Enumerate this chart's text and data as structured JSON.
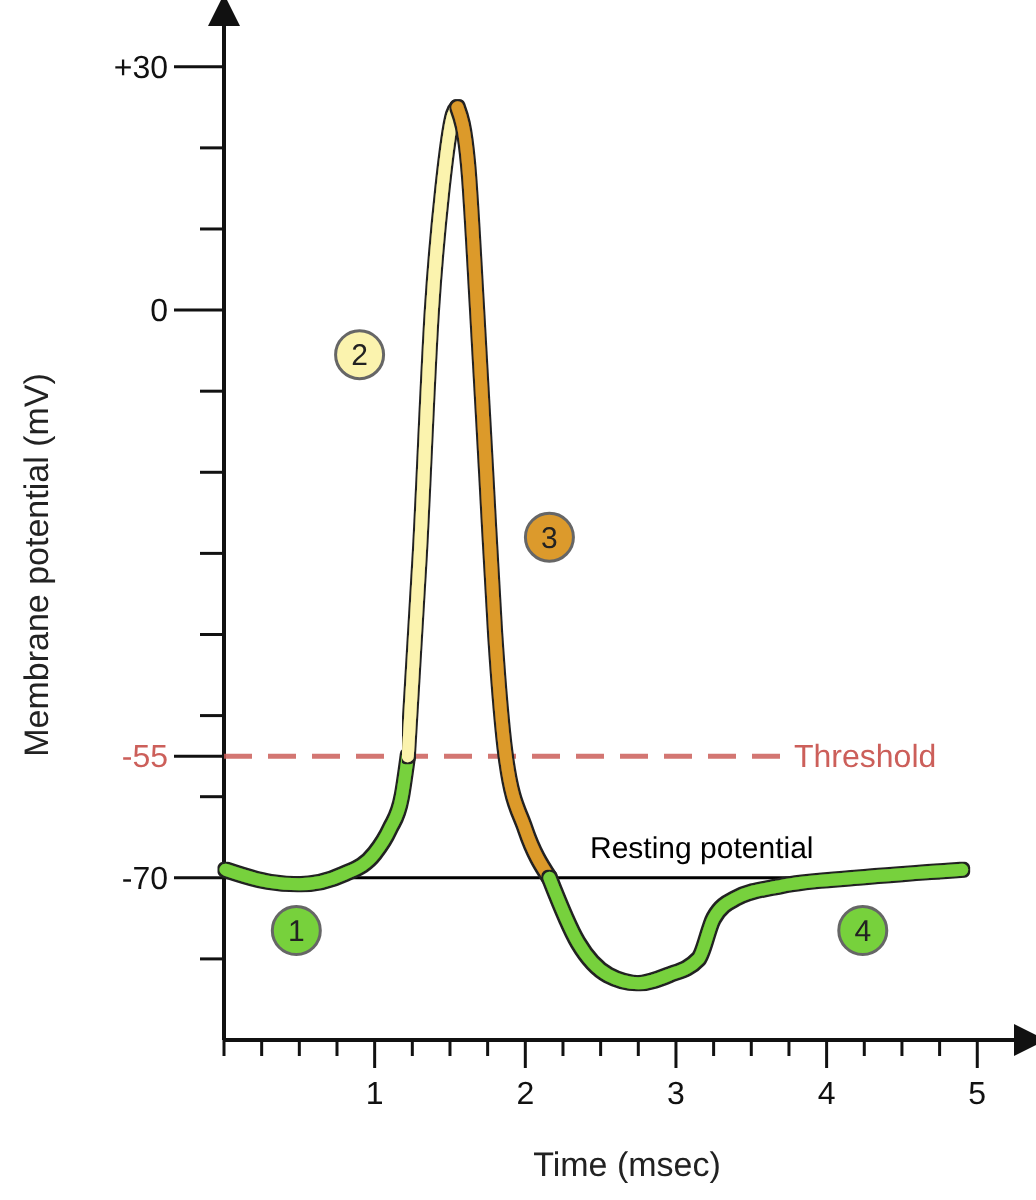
{
  "chart_data": {
    "type": "line",
    "xlabel": "Time (msec)",
    "ylabel": "Membrane potential (mV)",
    "xlim": [
      0,
      5.35
    ],
    "ylim": [
      -90,
      37
    ],
    "xticks": [
      {
        "value": 0,
        "label": null
      },
      {
        "value": 0.25,
        "label": null
      },
      {
        "value": 0.5,
        "label": null
      },
      {
        "value": 0.75,
        "label": null
      },
      1,
      {
        "value": 1.25,
        "label": null
      },
      {
        "value": 1.5,
        "label": null
      },
      {
        "value": 1.75,
        "label": null
      },
      2,
      {
        "value": 2.25,
        "label": null
      },
      {
        "value": 2.5,
        "label": null
      },
      {
        "value": 2.75,
        "label": null
      },
      3,
      {
        "value": 3.25,
        "label": null
      },
      {
        "value": 3.5,
        "label": null
      },
      {
        "value": 3.75,
        "label": null
      },
      4,
      {
        "value": 4.25,
        "label": null
      },
      {
        "value": 4.5,
        "label": null
      },
      {
        "value": 4.75,
        "label": null
      },
      5
    ],
    "yticks": [
      {
        "value": 30,
        "label": "+30"
      },
      {
        "value": 20,
        "label": null
      },
      {
        "value": 10,
        "label": null
      },
      0,
      {
        "value": -10,
        "label": null
      },
      {
        "value": -20,
        "label": null
      },
      {
        "value": -30,
        "label": null
      },
      {
        "value": -40,
        "label": null
      },
      {
        "value": -50,
        "label": null
      },
      -55,
      {
        "value": -60,
        "label": null
      },
      -70,
      {
        "value": -80,
        "label": null
      }
    ],
    "series": [
      {
        "color": "#77d13c",
        "x": [
          0.01,
          0.3,
          0.5,
          0.8,
          1.0,
          1.1,
          1.18,
          1.22
        ],
        "values": [
          -69,
          -70.5,
          -70.8,
          -69.5,
          -67,
          -64,
          -60,
          -55
        ]
      },
      {
        "color": "#fbf3ae",
        "x": [
          1.22,
          1.3,
          1.38,
          1.45,
          1.52,
          1.55
        ],
        "values": [
          -55,
          -30,
          0,
          15,
          24,
          25
        ]
      },
      {
        "color": "#dc9a2c",
        "x": [
          1.55,
          1.62,
          1.68,
          1.74,
          1.8,
          1.87,
          2.0,
          2.16
        ],
        "values": [
          25,
          18,
          0,
          -20,
          -40,
          -55,
          -64,
          -70
        ]
      },
      {
        "color": "#77d13c",
        "x": [
          2.16,
          2.35,
          2.55,
          2.75,
          2.95,
          3.15,
          3.25,
          3.4,
          3.7,
          4.2,
          4.9
        ],
        "values": [
          -70,
          -78,
          -82,
          -83,
          -82,
          -80,
          -75,
          -72.5,
          -71,
          -70,
          -69
        ]
      }
    ],
    "ref_lines": [
      {
        "axis": "y",
        "value": -55,
        "label": "Threshold",
        "color": "#cc5f5a",
        "line_style": "dashed"
      },
      {
        "axis": "y",
        "value": -70,
        "label": "Resting potential",
        "color": "#000000",
        "line_style": "solid"
      }
    ],
    "annotations": [
      {
        "text": "1",
        "x": 0.48,
        "y": -76.5
      },
      {
        "text": "2",
        "x": 0.9,
        "y": -5.5
      },
      {
        "text": "3",
        "x": 2.16,
        "y": -28
      },
      {
        "text": "4",
        "x": 4.24,
        "y": -76.5
      }
    ],
    "marker": "none",
    "line_style": "solid"
  }
}
